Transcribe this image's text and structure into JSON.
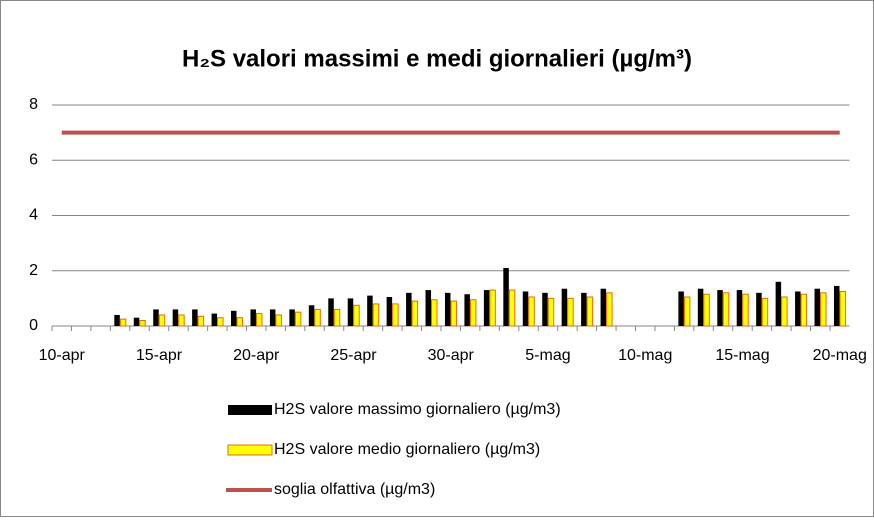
{
  "chart_data": {
    "type": "bar",
    "title": "H₂S valori massimi e medi giornalieri (µg/m³)",
    "categories": [
      "10-apr",
      null,
      null,
      null,
      null,
      "15-apr",
      null,
      null,
      null,
      null,
      "20-apr",
      null,
      null,
      null,
      null,
      "25-apr",
      null,
      null,
      null,
      null,
      "30-apr",
      null,
      null,
      null,
      null,
      "5-mag",
      null,
      null,
      null,
      null,
      "10-mag",
      null,
      null,
      null,
      null,
      "15-mag",
      null,
      null,
      null,
      null,
      "20-mag"
    ],
    "series": [
      {
        "name": "H2S valore massimo giornaliero (µg/m3)",
        "color": "#000000",
        "values": [
          null,
          null,
          null,
          0.4,
          0.3,
          0.6,
          0.6,
          0.6,
          0.45,
          0.55,
          0.6,
          0.6,
          0.6,
          0.75,
          1.0,
          1.0,
          1.1,
          1.05,
          1.2,
          1.3,
          1.2,
          1.15,
          1.3,
          2.1,
          1.25,
          1.2,
          1.35,
          1.2,
          1.35,
          null,
          null,
          null,
          1.25,
          1.35,
          1.3,
          1.3,
          1.2,
          1.6,
          1.25,
          1.35,
          1.45
        ]
      },
      {
        "name": "H2S valore medio giornaliero (µg/m3)",
        "color": "#ffff00",
        "edgecolor": "#e46c0a",
        "values": [
          null,
          null,
          null,
          0.25,
          0.2,
          0.4,
          0.4,
          0.35,
          0.3,
          0.3,
          0.45,
          0.4,
          0.5,
          0.6,
          0.6,
          0.75,
          0.8,
          0.8,
          0.9,
          0.95,
          0.9,
          0.95,
          1.3,
          1.3,
          1.05,
          1.0,
          1.0,
          1.05,
          1.2,
          null,
          null,
          null,
          1.05,
          1.15,
          1.2,
          1.15,
          1.0,
          1.05,
          1.15,
          1.2,
          1.25
        ]
      },
      {
        "name": "soglia olfattiva (µg/m3)",
        "type": "line",
        "color": "#c0504d",
        "values": [
          7,
          7,
          7,
          7,
          7,
          7,
          7,
          7,
          7,
          7,
          7,
          7,
          7,
          7,
          7,
          7,
          7,
          7,
          7,
          7,
          7,
          7,
          7,
          7,
          7,
          7,
          7,
          7,
          7,
          7,
          7,
          7,
          7,
          7,
          7,
          7,
          7,
          7,
          7,
          7,
          7
        ]
      }
    ],
    "ylim": [
      0,
      8
    ],
    "yticks": [
      0,
      2,
      4,
      6,
      8
    ],
    "grid": true
  }
}
